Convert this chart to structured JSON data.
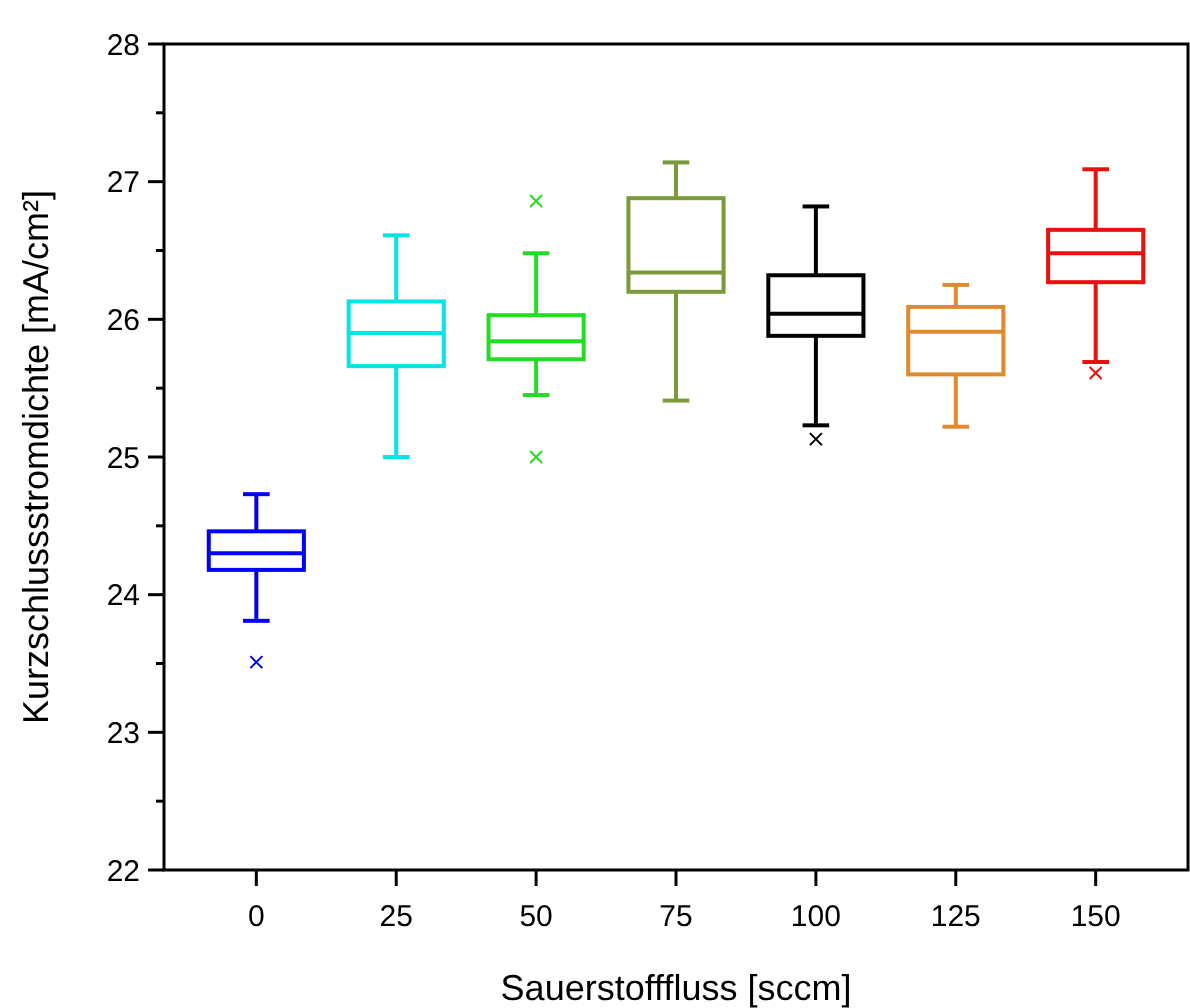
{
  "chart_data": {
    "type": "box",
    "xlabel": "Sauerstofffluss [sccm]",
    "ylabel": "Kurzschlussstromdichte [mA/cm²]",
    "categories": [
      "0",
      "25",
      "50",
      "75",
      "100",
      "125",
      "150"
    ],
    "colors": [
      "#0000ff",
      "#00e5e5",
      "#22dd22",
      "#7b9a3a",
      "#000000",
      "#e08a30",
      "#e81010"
    ],
    "boxes": [
      {
        "low": 23.81,
        "q1": 24.18,
        "median": 24.3,
        "q3": 24.46,
        "high": 24.73,
        "outliers": [
          23.51
        ]
      },
      {
        "low": 25.0,
        "q1": 25.66,
        "median": 25.9,
        "q3": 26.13,
        "high": 26.61
      },
      {
        "low": 25.45,
        "q1": 25.71,
        "median": 25.84,
        "q3": 26.03,
        "high": 26.48,
        "outliers": [
          26.86,
          25.0
        ]
      },
      {
        "low": 25.41,
        "q1": 26.2,
        "median": 26.34,
        "q3": 26.88,
        "high": 27.14
      },
      {
        "low": 25.23,
        "q1": 25.88,
        "median": 26.04,
        "q3": 26.32,
        "high": 26.82,
        "outliers": [
          25.13
        ]
      },
      {
        "low": 25.22,
        "q1": 25.6,
        "median": 25.91,
        "q3": 26.09,
        "high": 26.25
      },
      {
        "low": 25.69,
        "q1": 26.27,
        "median": 26.48,
        "q3": 26.65,
        "high": 27.09,
        "outliers": [
          25.61
        ]
      }
    ],
    "ylim": [
      22,
      28
    ],
    "yticks": [
      22,
      23,
      24,
      25,
      26,
      27,
      28
    ],
    "grid": false
  }
}
